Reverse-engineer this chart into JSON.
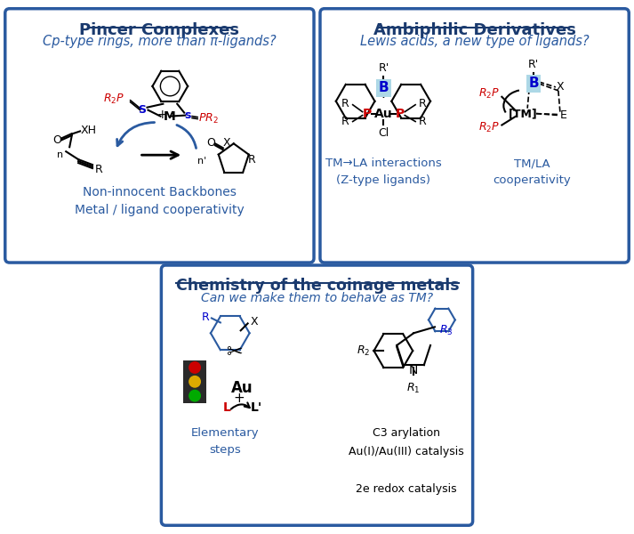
{
  "bg_color": "#ffffff",
  "border_color": "#2a5aa0",
  "title_color": "#1a3a6e",
  "subtitle_color": "#2a5aa0",
  "body_color": "#2a5aa0",
  "red_color": "#cc0000",
  "blue_color": "#0000cc",
  "black_color": "#000000",
  "box1_title": "Pincer Complexes",
  "box1_subtitle": "Cp-type rings, more than π-ligands?",
  "box1_caption": "Non-innocent Backbones\nMetal / ligand cooperativity",
  "box2_title": "Ambiphilic Derivatives",
  "box2_subtitle": "Lewis acids, a new type of ligands?",
  "box2_caption1": "TM→LA interactions\n(Z-type ligands)",
  "box2_caption2": "TM/LA\ncooperativity",
  "box3_title": "Chemistry of the coinage metals",
  "box3_subtitle": "Can we make them to behave as TM?",
  "box3_caption1": "Elementary\nsteps",
  "box3_caption2": "C3 arylation\nAu(I)/Au(III) catalysis\n\n2e redox catalysis"
}
